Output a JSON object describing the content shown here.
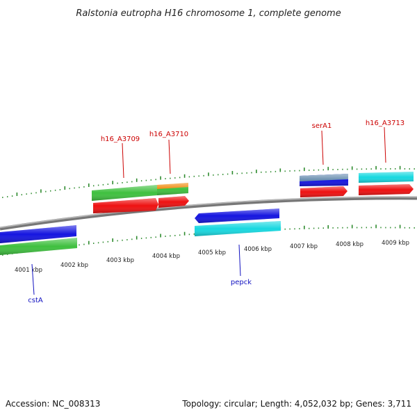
{
  "header": {
    "title": "Ralstonia eutropha H16 chromosome 1, complete genome"
  },
  "footer": {
    "accession": "Accession: NC_008313",
    "summary": "Topology: circular; Length: 4,052,032 bp; Genes: 3,711"
  },
  "colors": {
    "backbone": "#8c8c8c",
    "tick": "#2d8a2d",
    "label_top": "#cc0000",
    "label_bottom": "#1010c0",
    "gene_green": "#3fc03f",
    "gene_red": "#ee1111",
    "gene_blue": "#1515e0",
    "gene_cyan": "#18d8e0",
    "gene_orange": "#f08c10",
    "gene_steel": "#6a8fb0"
  },
  "scale": {
    "kbp_labels": [
      "4001 kbp",
      "4002 kbp",
      "4003 kbp",
      "4004 kbp",
      "4005 kbp",
      "4006 kbp",
      "4007 kbp",
      "4008 kbp",
      "4009 kbp"
    ]
  },
  "gene_labels": [
    {
      "text": "h16_A3709",
      "side": "top"
    },
    {
      "text": "h16_A3710",
      "side": "top"
    },
    {
      "text": "serA1",
      "side": "top"
    },
    {
      "text": "h16_A3713",
      "side": "top"
    },
    {
      "text": "cstA",
      "side": "bottom"
    },
    {
      "text": "pepck",
      "side": "bottom"
    }
  ]
}
